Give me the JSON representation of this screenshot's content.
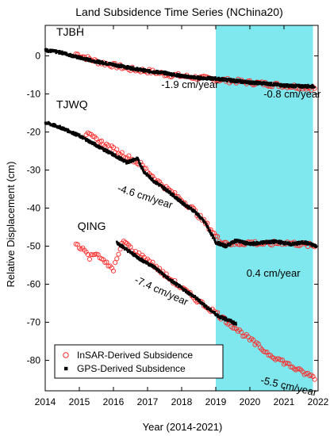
{
  "chart_data": {
    "type": "scatter",
    "title": "Land Subsidence Time Series (NChina20)",
    "xlabel": "Year (2014-2021)",
    "ylabel": "Relative Displacement (cm)",
    "xlim": [
      2014,
      2022
    ],
    "ylim": [
      -88,
      8
    ],
    "xticks": [
      2014,
      2015,
      2016,
      2017,
      2018,
      2019,
      2020,
      2021,
      2022
    ],
    "yticks": [
      0,
      -10,
      -20,
      -30,
      -40,
      -50,
      -60,
      -70,
      -80
    ],
    "grid": false,
    "highlight": {
      "x_start": 2019.0,
      "x_end": 2021.85,
      "color": "#7fe8ee"
    },
    "legend": {
      "placement": "bottom-left",
      "entries": [
        {
          "label": "InSAR-Derived Subsidence",
          "marker": "open-circle",
          "color": "#ff2a2a"
        },
        {
          "label": "GPS-Derived Subsidence",
          "marker": "filled-square",
          "color": "#000000"
        }
      ]
    },
    "stations": [
      {
        "name": "TJBH",
        "insar": [
          [
            2014.9,
            0.5
          ],
          [
            2015.5,
            -1.5
          ],
          [
            2016.0,
            -2.5
          ],
          [
            2016.5,
            -3.5
          ],
          [
            2017.0,
            -4.0
          ],
          [
            2017.5,
            -4.8
          ],
          [
            2018.0,
            -5.3
          ],
          [
            2018.5,
            -5.8
          ],
          [
            2019.0,
            -6.2
          ],
          [
            2019.5,
            -6.6
          ],
          [
            2020.0,
            -7.0
          ],
          [
            2020.5,
            -7.4
          ],
          [
            2021.0,
            -7.8
          ],
          [
            2021.5,
            -8.2
          ],
          [
            2021.9,
            -8.5
          ]
        ],
        "gps": [
          [
            2014.0,
            1.5
          ],
          [
            2014.5,
            0.8
          ],
          [
            2015.0,
            -0.5
          ],
          [
            2015.5,
            -1.5
          ],
          [
            2016.0,
            -2.3
          ],
          [
            2016.5,
            -3.2
          ],
          [
            2017.0,
            -4.0
          ],
          [
            2017.5,
            -4.5
          ],
          [
            2018.0,
            -5.3
          ],
          [
            2018.5,
            -5.8
          ],
          [
            2019.0,
            -6.0
          ],
          [
            2019.5,
            -6.5
          ],
          [
            2020.0,
            -7.0
          ],
          [
            2020.5,
            -7.3
          ],
          [
            2021.0,
            -7.8
          ],
          [
            2021.5,
            -8.0
          ],
          [
            2021.9,
            -8.0
          ]
        ]
      },
      {
        "name": "TJWQ",
        "insar": [
          [
            2015.2,
            -20.5
          ],
          [
            2015.8,
            -23.5
          ],
          [
            2016.3,
            -26.0
          ],
          [
            2016.8,
            -28.5
          ],
          [
            2017.3,
            -33.0
          ],
          [
            2017.8,
            -36.5
          ],
          [
            2018.3,
            -40.0
          ],
          [
            2018.8,
            -45.0
          ],
          [
            2019.1,
            -48.5
          ],
          [
            2019.5,
            -49.5
          ],
          [
            2020.0,
            -49.0
          ],
          [
            2020.5,
            -49.5
          ],
          [
            2021.0,
            -49.0
          ],
          [
            2021.5,
            -49.5
          ],
          [
            2021.9,
            -50.0
          ]
        ],
        "gps": [
          [
            2014.0,
            -17.5
          ],
          [
            2014.5,
            -19.0
          ],
          [
            2015.0,
            -21.0
          ],
          [
            2015.5,
            -23.5
          ],
          [
            2016.0,
            -26.0
          ],
          [
            2016.4,
            -28.0
          ],
          [
            2016.7,
            -27.0
          ],
          [
            2016.9,
            -30.5
          ],
          [
            2017.2,
            -33.0
          ],
          [
            2017.6,
            -35.5
          ],
          [
            2018.0,
            -38.5
          ],
          [
            2018.4,
            -41.0
          ],
          [
            2018.7,
            -44.0
          ],
          [
            2019.0,
            -49.0
          ],
          [
            2019.3,
            -50.0
          ],
          [
            2019.6,
            -48.5
          ],
          [
            2020.0,
            -49.5
          ],
          [
            2020.4,
            -49.0
          ],
          [
            2020.8,
            -48.8
          ],
          [
            2021.2,
            -49.5
          ],
          [
            2021.6,
            -49.0
          ],
          [
            2021.95,
            -50.0
          ]
        ]
      },
      {
        "name": "QING",
        "insar": [
          [
            2014.9,
            -49.5
          ],
          [
            2015.1,
            -50.5
          ],
          [
            2015.3,
            -53.0
          ],
          [
            2015.5,
            -51.5
          ],
          [
            2015.7,
            -54.0
          ],
          [
            2016.0,
            -56.0
          ],
          [
            2016.3,
            -48.5
          ],
          [
            2016.6,
            -51.5
          ],
          [
            2017.0,
            -53.5
          ],
          [
            2017.5,
            -57.5
          ],
          [
            2018.0,
            -61.0
          ],
          [
            2018.5,
            -64.5
          ],
          [
            2019.0,
            -67.5
          ],
          [
            2019.5,
            -71.0
          ],
          [
            2020.0,
            -74.5
          ],
          [
            2020.5,
            -78.0
          ],
          [
            2021.0,
            -80.5
          ],
          [
            2021.5,
            -83.0
          ],
          [
            2021.9,
            -84.5
          ]
        ],
        "gps": [
          [
            2016.1,
            -49.0
          ],
          [
            2016.4,
            -51.0
          ],
          [
            2016.8,
            -53.5
          ],
          [
            2017.2,
            -55.5
          ],
          [
            2017.6,
            -58.5
          ],
          [
            2018.0,
            -61.0
          ],
          [
            2018.4,
            -63.5
          ],
          [
            2018.8,
            -66.5
          ],
          [
            2019.1,
            -68.5
          ],
          [
            2019.4,
            -69.5
          ],
          [
            2019.6,
            -70.5
          ]
        ]
      }
    ],
    "annotations": [
      {
        "text": "-1.9 cm/year",
        "x": 2017.4,
        "y": -8.5,
        "angle": 0
      },
      {
        "text": "-0.8 cm/year",
        "x": 2020.4,
        "y": -11.0,
        "angle": 0
      },
      {
        "text": "-4.6 cm/year",
        "x": 2016.1,
        "y": -35.5,
        "angle": 18
      },
      {
        "text": "0.4 cm/year",
        "x": 2019.9,
        "y": -58.0,
        "angle": 0
      },
      {
        "text": "-7.4 cm/year",
        "x": 2016.6,
        "y": -59.5,
        "angle": 24
      },
      {
        "text": "-5.5 cm/year",
        "x": 2020.3,
        "y": -86.0,
        "angle": 13
      }
    ]
  }
}
